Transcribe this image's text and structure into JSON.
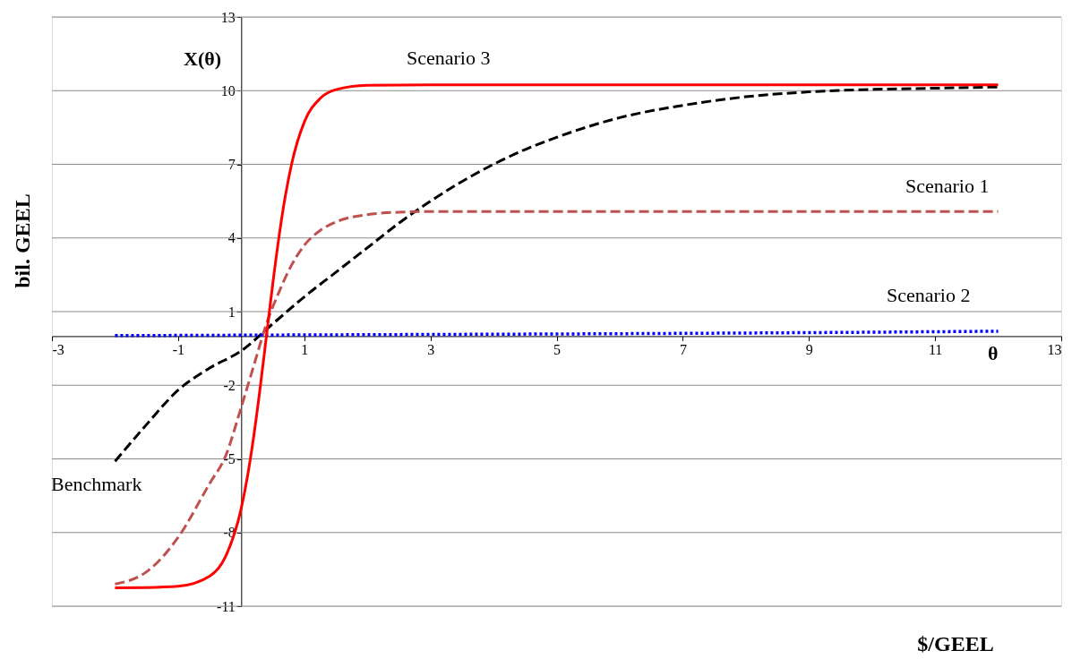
{
  "chart_data": {
    "type": "line",
    "xlabel": "$/GEEL",
    "ylabel": "bil. GEEL",
    "xlim": [
      -3,
      13
    ],
    "xticks": [
      -3,
      -1,
      1,
      3,
      5,
      7,
      9,
      11,
      13
    ],
    "ylim": [
      -11,
      13
    ],
    "yticks": [
      -11,
      -8,
      -5,
      -2,
      1,
      4,
      7,
      10,
      13
    ],
    "grid": "y",
    "legend": false,
    "marker": "none",
    "series": [
      {
        "name": "Benchmark",
        "color": "#000000",
        "line_style": "dashed",
        "x": [
          -2,
          -1.5,
          -1,
          -0.5,
          0,
          0.5,
          1,
          1.5,
          2,
          2.5,
          3,
          3.5,
          4,
          4.5,
          5,
          6,
          7,
          8,
          9,
          10,
          11,
          12
        ],
        "values": [
          -5.1,
          -3.6,
          -2.2,
          -1.3,
          -0.6,
          0.5,
          1.6,
          2.6,
          3.6,
          4.6,
          5.5,
          6.3,
          7.0,
          7.6,
          8.1,
          8.9,
          9.4,
          9.75,
          9.95,
          10.05,
          10.1,
          10.15
        ]
      },
      {
        "name": "Scenario 1",
        "color": "#c0504d",
        "line_style": "dashed",
        "x": [
          -2,
          -1.5,
          -1,
          -0.5,
          -0.25,
          0,
          0.2,
          0.4,
          0.6,
          0.8,
          1,
          1.25,
          1.5,
          2,
          2.5,
          3,
          12
        ],
        "values": [
          -10.1,
          -9.6,
          -8.2,
          -6.0,
          -4.9,
          -2.9,
          -1.2,
          0.5,
          1.8,
          2.9,
          3.7,
          4.3,
          4.65,
          4.95,
          5.05,
          5.08,
          5.08
        ]
      },
      {
        "name": "Scenario 2",
        "color": "#0000ff",
        "line_style": "dotted",
        "x": [
          -2,
          2,
          6,
          10,
          12
        ],
        "values": [
          0.02,
          0.06,
          0.1,
          0.16,
          0.2
        ]
      },
      {
        "name": "Scenario 3",
        "color": "#ff0000",
        "line_style": "solid",
        "x": [
          -2,
          -1.5,
          -1,
          -0.5,
          -0.25,
          0,
          0.1,
          0.2,
          0.3,
          0.4,
          0.5,
          0.6,
          0.7,
          0.8,
          1,
          1.25,
          1.5,
          2,
          3,
          12
        ],
        "values": [
          -10.25,
          -10.24,
          -10.19,
          -9.78,
          -8.99,
          -7.02,
          -5.71,
          -4.06,
          -2.12,
          0,
          2.12,
          4.06,
          5.71,
          7.02,
          8.72,
          9.68,
          10.04,
          10.22,
          10.24,
          10.24
        ]
      }
    ],
    "annotations": [
      "X(θ)",
      "θ"
    ]
  }
}
